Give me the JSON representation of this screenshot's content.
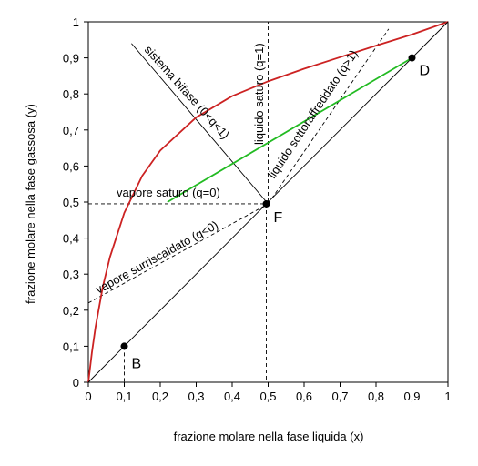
{
  "chart_data": {
    "type": "line",
    "xlabel": "frazione molare nella fase liquida (x)",
    "ylabel": "frazione molare nella fase gassosa (y)",
    "xlim": [
      0,
      1
    ],
    "ylim": [
      0,
      1
    ],
    "x_ticks": [
      "0",
      "0,1",
      "0,2",
      "0,3",
      "0,4",
      "0,5",
      "0,6",
      "0,7",
      "0,8",
      "0,9",
      "1"
    ],
    "y_ticks": [
      "0",
      "0,1",
      "0,2",
      "0,3",
      "0,4",
      "0,5",
      "0,6",
      "0,7",
      "0,8",
      "0,9",
      "1"
    ],
    "grid": false,
    "colors": {
      "equilibrium": "#cc2222",
      "operating": "#22bb22",
      "lines": "#000000"
    },
    "series": [
      {
        "kind": "equilibrium-curve",
        "x": [
          0,
          0.01,
          0.02,
          0.04,
          0.06,
          0.1,
          0.15,
          0.2,
          0.3,
          0.4,
          0.5,
          0.6,
          0.7,
          0.8,
          0.9,
          1
        ],
        "y": [
          0,
          0.083,
          0.153,
          0.264,
          0.347,
          0.47,
          0.573,
          0.643,
          0.735,
          0.794,
          0.835,
          0.87,
          0.902,
          0.934,
          0.965,
          1
        ]
      },
      {
        "kind": "diagonal",
        "x": [
          0,
          1
        ],
        "y": [
          0,
          1
        ]
      },
      {
        "kind": "operating-line",
        "x": [
          0.22,
          0.9
        ],
        "y": [
          0.5,
          0.9
        ]
      }
    ],
    "q_lines": [
      {
        "label": "liquido saturo (q=1)",
        "x": [
          0.5,
          0.5
        ],
        "y": [
          0.5,
          1
        ],
        "style": "dashed"
      },
      {
        "label": "vapore saturo (q=0)",
        "x": [
          0,
          0.5
        ],
        "y": [
          0.495,
          0.495
        ],
        "style": "dashed"
      },
      {
        "label": "sistema bifase (0<q<1)",
        "x": [
          0.12,
          0.5
        ],
        "y": [
          0.94,
          0.495
        ],
        "style": "solid"
      },
      {
        "label": "liquido sottoraffreddato (q>1)",
        "x": [
          0.5,
          0.835
        ],
        "y": [
          0.495,
          0.98
        ],
        "style": "dashed"
      },
      {
        "label": "vapore surriscaldato (q<0)",
        "x": [
          0,
          0.5
        ],
        "y": [
          0.22,
          0.495
        ],
        "style": "dashed"
      }
    ],
    "points": [
      {
        "label": "B",
        "x": 0.1,
        "y": 0.1
      },
      {
        "label": "F",
        "x": 0.495,
        "y": 0.495
      },
      {
        "label": "D",
        "x": 0.9,
        "y": 0.9
      }
    ]
  }
}
